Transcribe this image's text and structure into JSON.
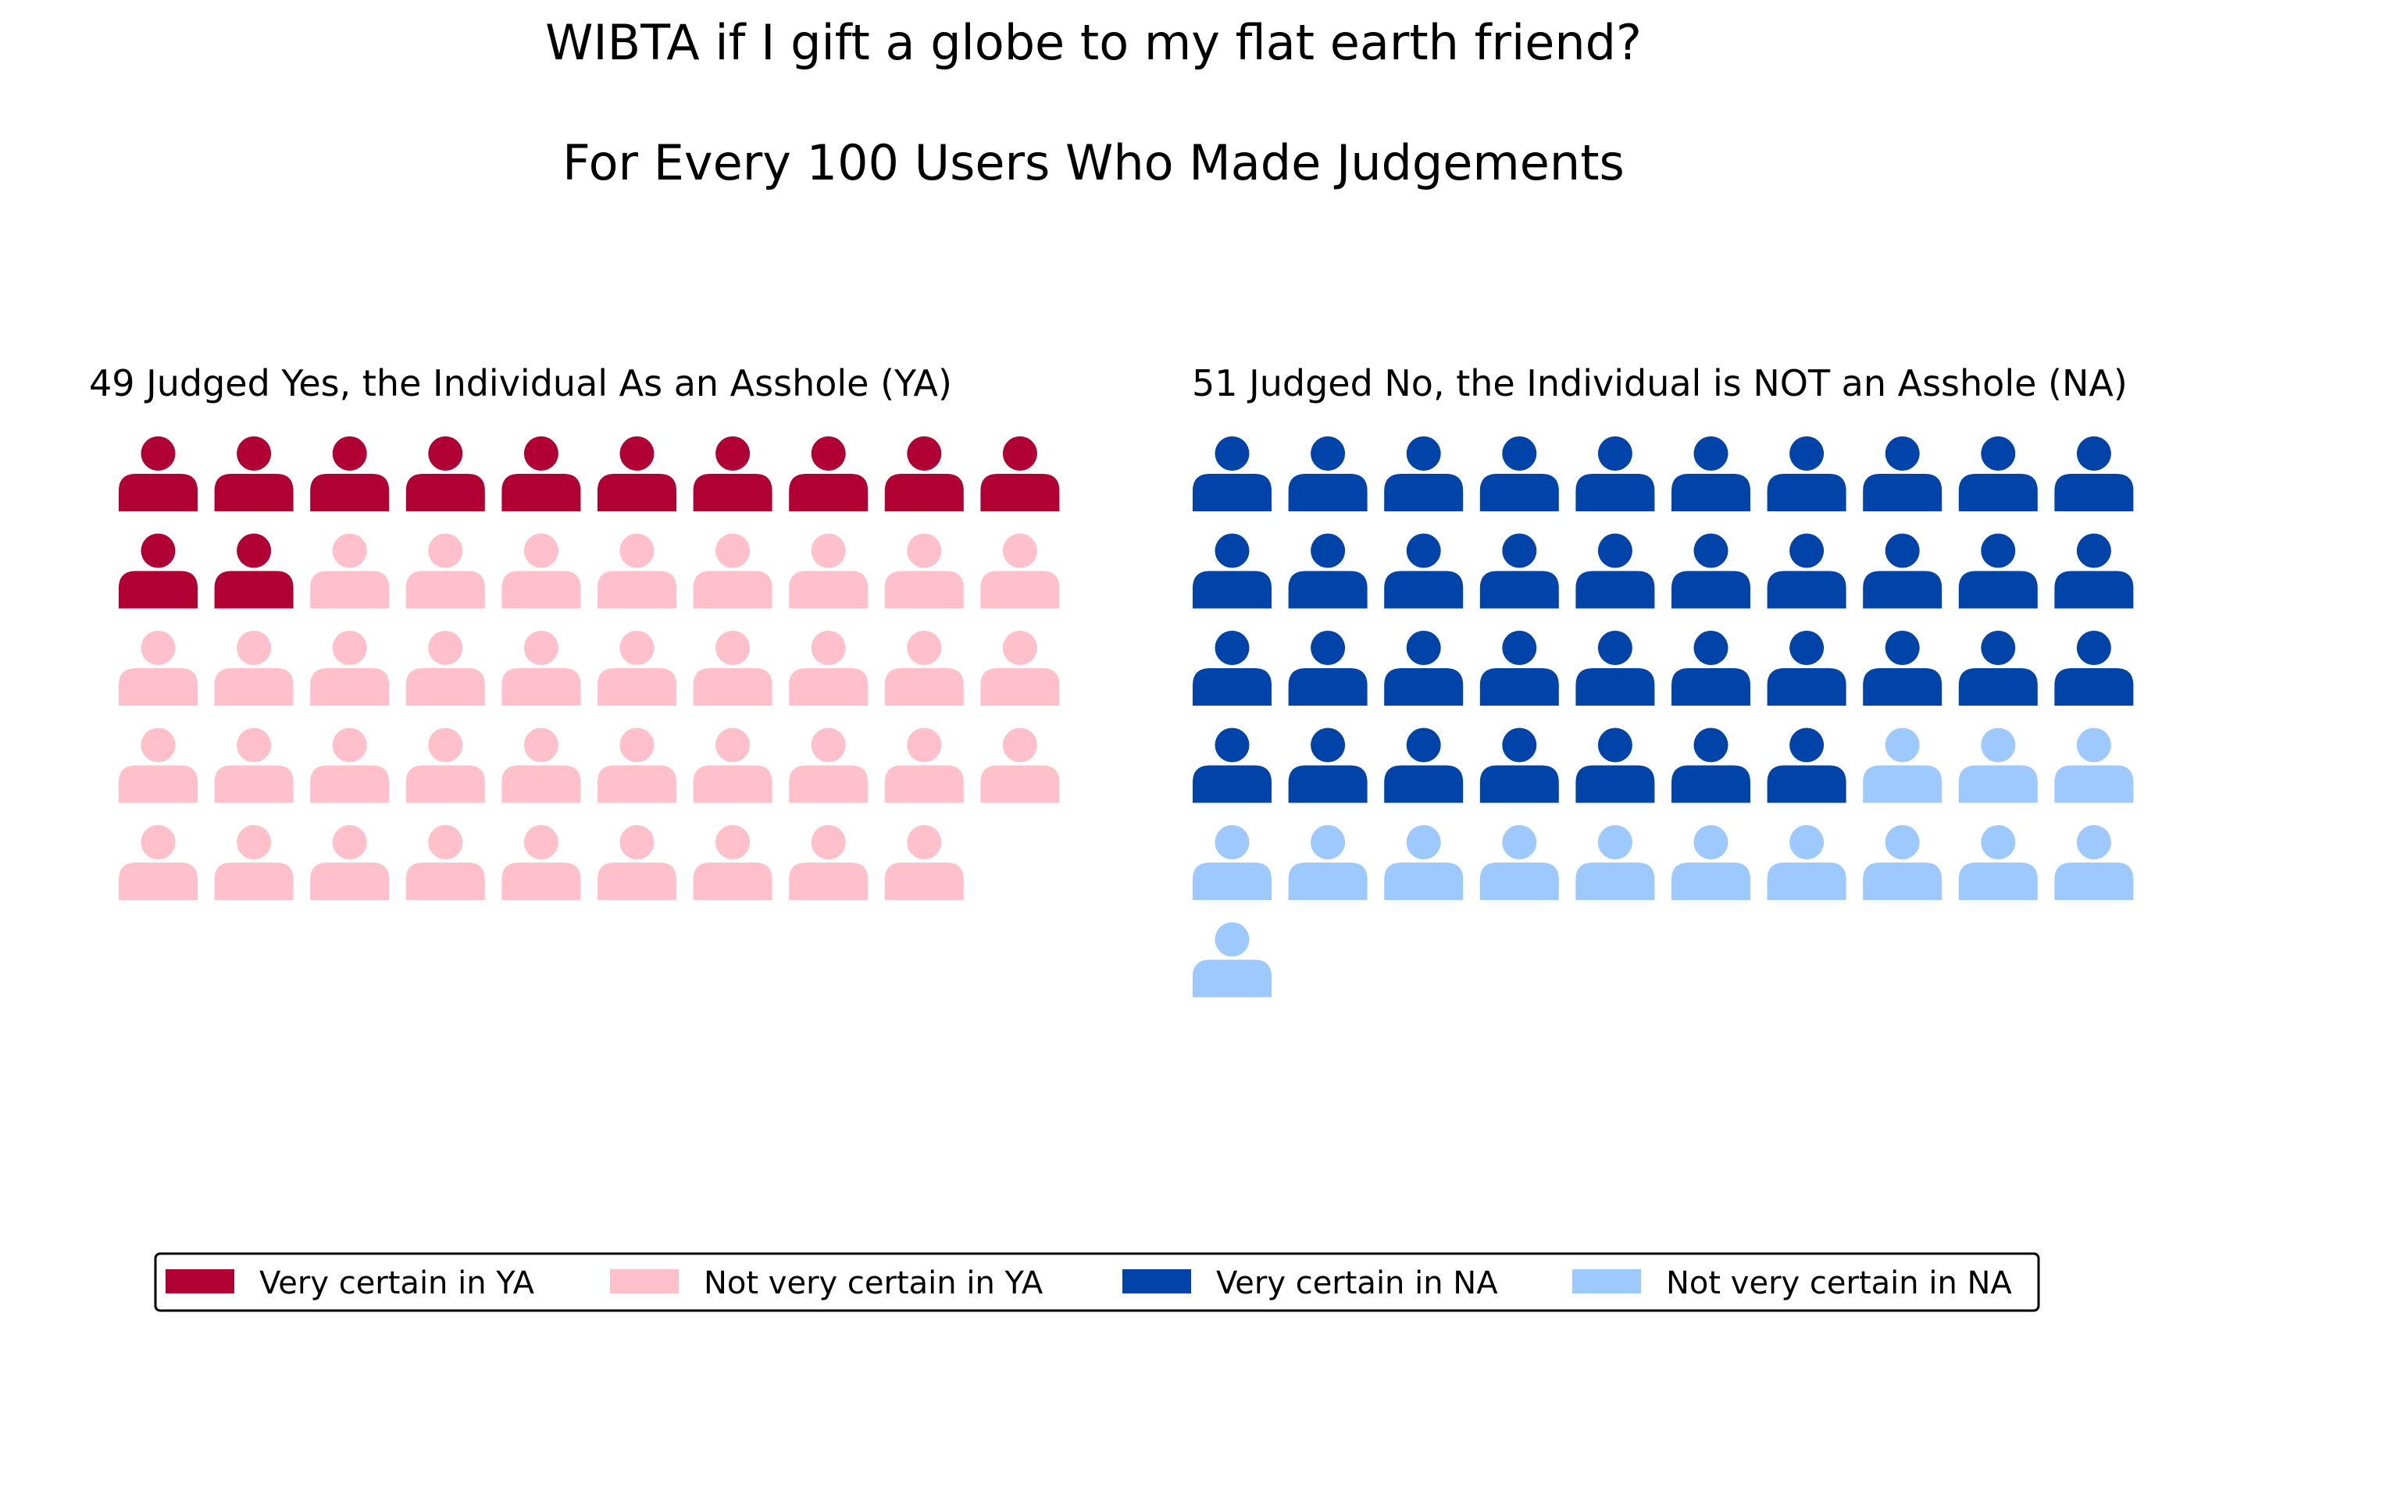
{
  "chart_data": {
    "type": "waffle",
    "title": "WIBTA if I gift a globe to my flat earth friend?",
    "subtitle": "For Every 100 Users Who Made Judgements",
    "panels": [
      {
        "label": "49 Judged Yes, the Individual As an Asshole (YA)",
        "total": 49,
        "groups": [
          {
            "name": "Very certain in YA",
            "count": 12,
            "color": "#b10034"
          },
          {
            "name": "Not very certain in YA",
            "count": 37,
            "color": "#ffc0cb"
          }
        ]
      },
      {
        "label": "51 Judged No, the Individual is NOT an Asshole (NA)",
        "total": 51,
        "groups": [
          {
            "name": "Very certain in NA",
            "count": 37,
            "color": "#0044aa"
          },
          {
            "name": "Not very certain in NA",
            "count": 14,
            "color": "#9ec9ff"
          }
        ]
      }
    ],
    "icons_per_row": 10,
    "icon": "person-icon",
    "legend": {
      "placement": "bottom",
      "entries": [
        {
          "label": "Very certain in YA",
          "color": "#b10034"
        },
        {
          "label": "Not very certain in YA",
          "color": "#ffc0cb"
        },
        {
          "label": "Very certain in NA",
          "color": "#0044aa"
        },
        {
          "label": "Not very certain in NA",
          "color": "#9ec9ff"
        }
      ]
    }
  }
}
